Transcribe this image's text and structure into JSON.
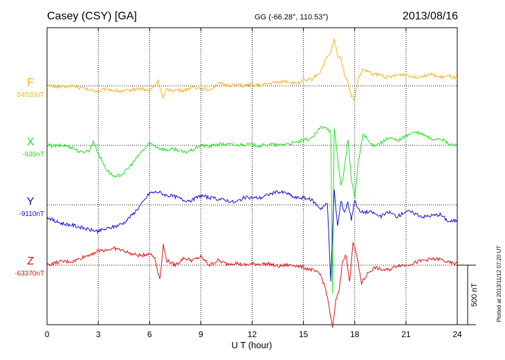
{
  "header": {
    "station": "Casey (CSY)  [GA]",
    "coords": "GG (-66.28°, 110.53°)",
    "date": "2013/08/16"
  },
  "footer": {
    "plotted": "Plotted at 2013/11/12 07:20 UT"
  },
  "colors": {
    "F": "#f5b21e",
    "X": "#22e022",
    "Y": "#1010d0",
    "Z": "#e01010",
    "grid": "#000000"
  },
  "chart_data": {
    "type": "line",
    "xlabel": "U T (hour)",
    "xlim": [
      0,
      24
    ],
    "xticks": [
      0,
      3,
      6,
      9,
      12,
      15,
      18,
      21,
      24
    ],
    "scale_bar": {
      "label": "500 nT",
      "value_nT": 500
    },
    "series": [
      {
        "key": "F",
        "name": "F",
        "baseline_label": "64020nT",
        "baseline_nT": 64020,
        "x": [
          0,
          0.5,
          1,
          1.5,
          2,
          2.5,
          3,
          3.5,
          4,
          4.5,
          5,
          5.5,
          6,
          6.5,
          6.8,
          7,
          7.5,
          8,
          8.5,
          9,
          9.5,
          10,
          10.5,
          11,
          11.5,
          12,
          12.5,
          13,
          13.5,
          14,
          14.5,
          15,
          15.5,
          16,
          16.3,
          16.6,
          16.8,
          17,
          17.2,
          17.4,
          17.6,
          17.8,
          18,
          18.2,
          18.5,
          19,
          19.5,
          20,
          20.5,
          21,
          21.5,
          22,
          22.5,
          23,
          23.5,
          24
        ],
        "values": [
          0,
          -5,
          -10,
          0,
          -20,
          -35,
          -45,
          -25,
          -40,
          -50,
          -30,
          -20,
          -45,
          40,
          -110,
          -30,
          -35,
          -40,
          -5,
          -20,
          -35,
          20,
          5,
          10,
          0,
          10,
          5,
          20,
          30,
          40,
          20,
          40,
          55,
          120,
          220,
          280,
          390,
          250,
          230,
          100,
          30,
          -80,
          -120,
          60,
          140,
          100,
          90,
          70,
          90,
          100,
          70,
          85,
          95,
          70,
          80,
          60
        ]
      },
      {
        "key": "X",
        "name": "X",
        "baseline_label": "-930nT",
        "baseline_nT": -930,
        "x": [
          0,
          0.5,
          1,
          1.5,
          2,
          2.5,
          2.7,
          3,
          3.5,
          4,
          4.5,
          5,
          5.5,
          6,
          6.5,
          7,
          7.5,
          8,
          8.5,
          9,
          9.5,
          10,
          10.5,
          11,
          11.5,
          12,
          12.5,
          13,
          13.5,
          14,
          14.5,
          15,
          15.5,
          16,
          16.3,
          16.6,
          16.7,
          16.8,
          17,
          17.2,
          17.4,
          17.6,
          17.8,
          18,
          18.2,
          18.5,
          19,
          19.5,
          20,
          20.5,
          21,
          21.5,
          22,
          22.5,
          23,
          23.5,
          24
        ],
        "values": [
          0,
          -5,
          0,
          -20,
          -60,
          -40,
          40,
          -70,
          -210,
          -270,
          -230,
          -150,
          -60,
          20,
          -20,
          -40,
          -30,
          -60,
          -40,
          0,
          -10,
          10,
          10,
          0,
          10,
          5,
          -5,
          10,
          0,
          15,
          20,
          40,
          60,
          150,
          160,
          110,
          -1250,
          150,
          -100,
          -350,
          -200,
          60,
          -280,
          -450,
          -150,
          100,
          0,
          20,
          60,
          40,
          80,
          110,
          90,
          50,
          60,
          10,
          0
        ]
      },
      {
        "key": "Y",
        "name": "Y",
        "baseline_label": "-9110nT",
        "baseline_nT": -9110,
        "x": [
          0,
          0.5,
          1,
          1.5,
          2,
          2.5,
          3,
          3.5,
          4,
          4.5,
          5,
          5.5,
          6,
          6.5,
          7,
          7.5,
          8,
          8.5,
          9,
          9.5,
          10,
          10.5,
          11,
          11.5,
          12,
          12.5,
          13,
          13.5,
          14,
          14.5,
          15,
          15.5,
          16,
          16.4,
          16.6,
          16.8,
          17,
          17.2,
          17.4,
          17.6,
          17.8,
          18,
          18.3,
          18.6,
          19,
          19.5,
          20,
          20.5,
          21,
          21.5,
          22,
          22.5,
          23,
          23.5,
          24
        ],
        "values": [
          -100,
          -140,
          -160,
          -170,
          -190,
          -210,
          -220,
          -200,
          -180,
          -150,
          -80,
          0,
          100,
          110,
          80,
          70,
          40,
          40,
          80,
          60,
          50,
          40,
          20,
          60,
          60,
          60,
          90,
          110,
          100,
          60,
          60,
          40,
          -30,
          10,
          -630,
          120,
          -180,
          30,
          -60,
          20,
          -120,
          40,
          -60,
          -60,
          -60,
          -100,
          -60,
          -100,
          -50,
          -70,
          -100,
          -90,
          -80,
          -140,
          -130
        ]
      },
      {
        "key": "Z",
        "name": "Z",
        "baseline_label": "-63370nT",
        "baseline_nT": -63370,
        "x": [
          0,
          0.5,
          1,
          1.5,
          2,
          2.5,
          3,
          3.5,
          4,
          4.5,
          5,
          5.5,
          6,
          6.3,
          6.6,
          6.8,
          7,
          7.5,
          8,
          8.5,
          9,
          9.5,
          10,
          10.5,
          11,
          11.5,
          12,
          12.5,
          13,
          13.5,
          14,
          14.5,
          15,
          15.5,
          16,
          16.3,
          16.5,
          16.7,
          16.9,
          17.1,
          17.3,
          17.5,
          17.7,
          17.9,
          18.1,
          18.4,
          18.8,
          19.2,
          19.6,
          20,
          20.5,
          21,
          21.5,
          22,
          22.5,
          23,
          23.5,
          24
        ],
        "values": [
          0,
          20,
          30,
          30,
          60,
          90,
          120,
          130,
          140,
          120,
          90,
          80,
          100,
          60,
          -120,
          170,
          40,
          0,
          60,
          40,
          70,
          0,
          40,
          10,
          20,
          0,
          10,
          10,
          10,
          -10,
          0,
          0,
          -20,
          -40,
          -80,
          -200,
          -350,
          -530,
          -300,
          -200,
          50,
          80,
          -150,
          200,
          90,
          -150,
          -60,
          -20,
          -40,
          -40,
          0,
          0,
          20,
          40,
          50,
          50,
          20,
          10
        ]
      }
    ]
  }
}
